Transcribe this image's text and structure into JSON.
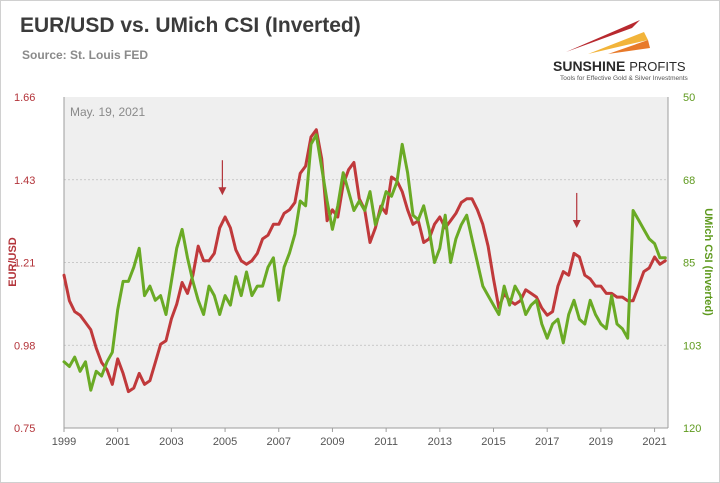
{
  "header": {
    "title": "EUR/USD vs. UMich CSI (Inverted)",
    "source": "Source: St. Louis FED"
  },
  "logo": {
    "brand_main": "SUNSHINE",
    "brand_sub": "PROFITS",
    "tagline": "Tools for Effective Gold & Silver Investments",
    "colors": [
      "#b8292f",
      "#f2b43a",
      "#e87a2a"
    ]
  },
  "chart_data": {
    "type": "line",
    "date_label": "May. 19, 2021",
    "xlabel": "",
    "ylabel_left": "EUR/USD",
    "ylabel_right": "UMich CSI (Inverted)",
    "x_ticks": [
      "1999",
      "2001",
      "2003",
      "2005",
      "2007",
      "2009",
      "2011",
      "2013",
      "2015",
      "2017",
      "2019",
      "2021"
    ],
    "y_left_ticks": [
      "1.66",
      "1.43",
      "1.21",
      "0.98",
      "0.75"
    ],
    "y_right_ticks": [
      "50",
      "68",
      "85",
      "103",
      "120"
    ],
    "ylim_left": [
      0.75,
      1.66
    ],
    "ylim_right": [
      50,
      120
    ],
    "right_axis_inverted": true,
    "xlim": [
      1999.0,
      2021.5
    ],
    "grid": true,
    "background": "#efefef",
    "annotations": [
      {
        "type": "arrow-down",
        "x": 2004.9,
        "y_left": 1.39
      },
      {
        "type": "arrow-down",
        "x": 2018.1,
        "y_left": 1.3
      }
    ],
    "series": [
      {
        "name": "EUR/USD",
        "axis": "left",
        "color": "#c0393b",
        "x": [
          1999.0,
          1999.2,
          1999.4,
          1999.6,
          1999.8,
          2000.0,
          2000.2,
          2000.4,
          2000.6,
          2000.8,
          2001.0,
          2001.2,
          2001.4,
          2001.6,
          2001.8,
          2002.0,
          2002.2,
          2002.4,
          2002.6,
          2002.8,
          2003.0,
          2003.2,
          2003.4,
          2003.6,
          2003.8,
          2004.0,
          2004.2,
          2004.4,
          2004.6,
          2004.8,
          2005.0,
          2005.2,
          2005.4,
          2005.6,
          2005.8,
          2006.0,
          2006.2,
          2006.4,
          2006.6,
          2006.8,
          2007.0,
          2007.2,
          2007.4,
          2007.6,
          2007.8,
          2008.0,
          2008.2,
          2008.4,
          2008.6,
          2008.8,
          2009.0,
          2009.2,
          2009.4,
          2009.6,
          2009.8,
          2010.0,
          2010.2,
          2010.4,
          2010.6,
          2010.8,
          2011.0,
          2011.2,
          2011.4,
          2011.6,
          2011.8,
          2012.0,
          2012.2,
          2012.4,
          2012.6,
          2012.8,
          2013.0,
          2013.2,
          2013.4,
          2013.6,
          2013.8,
          2014.0,
          2014.2,
          2014.4,
          2014.6,
          2014.8,
          2015.0,
          2015.2,
          2015.4,
          2015.6,
          2015.8,
          2016.0,
          2016.2,
          2016.4,
          2016.6,
          2016.8,
          2017.0,
          2017.2,
          2017.4,
          2017.6,
          2017.8,
          2018.0,
          2018.2,
          2018.4,
          2018.6,
          2018.8,
          2019.0,
          2019.2,
          2019.4,
          2019.6,
          2019.8,
          2020.0,
          2020.2,
          2020.4,
          2020.6,
          2020.8,
          2021.0,
          2021.2,
          2021.4
        ],
        "y": [
          1.17,
          1.1,
          1.07,
          1.06,
          1.04,
          1.02,
          0.97,
          0.93,
          0.91,
          0.87,
          0.94,
          0.9,
          0.85,
          0.86,
          0.9,
          0.87,
          0.88,
          0.93,
          0.98,
          0.99,
          1.05,
          1.09,
          1.15,
          1.12,
          1.17,
          1.25,
          1.21,
          1.21,
          1.23,
          1.3,
          1.33,
          1.3,
          1.24,
          1.21,
          1.2,
          1.21,
          1.23,
          1.27,
          1.28,
          1.31,
          1.31,
          1.34,
          1.35,
          1.37,
          1.45,
          1.47,
          1.55,
          1.57,
          1.49,
          1.32,
          1.35,
          1.33,
          1.42,
          1.46,
          1.48,
          1.38,
          1.35,
          1.26,
          1.3,
          1.36,
          1.34,
          1.44,
          1.43,
          1.4,
          1.35,
          1.31,
          1.32,
          1.26,
          1.27,
          1.31,
          1.33,
          1.3,
          1.32,
          1.34,
          1.37,
          1.38,
          1.38,
          1.35,
          1.31,
          1.25,
          1.16,
          1.08,
          1.12,
          1.1,
          1.09,
          1.1,
          1.13,
          1.12,
          1.11,
          1.08,
          1.06,
          1.07,
          1.14,
          1.18,
          1.17,
          1.23,
          1.22,
          1.17,
          1.16,
          1.14,
          1.14,
          1.12,
          1.12,
          1.11,
          1.11,
          1.1,
          1.1,
          1.14,
          1.18,
          1.19,
          1.22,
          1.2,
          1.21
        ]
      },
      {
        "name": "UMich CSI (Inverted)",
        "axis": "right",
        "color": "#6aaa25",
        "x": [
          1999.0,
          1999.2,
          1999.4,
          1999.6,
          1999.8,
          2000.0,
          2000.2,
          2000.4,
          2000.6,
          2000.8,
          2001.0,
          2001.2,
          2001.4,
          2001.6,
          2001.8,
          2002.0,
          2002.2,
          2002.4,
          2002.6,
          2002.8,
          2003.0,
          2003.2,
          2003.4,
          2003.6,
          2003.8,
          2004.0,
          2004.2,
          2004.4,
          2004.6,
          2004.8,
          2005.0,
          2005.2,
          2005.4,
          2005.6,
          2005.8,
          2006.0,
          2006.2,
          2006.4,
          2006.6,
          2006.8,
          2007.0,
          2007.2,
          2007.4,
          2007.6,
          2007.8,
          2008.0,
          2008.2,
          2008.4,
          2008.6,
          2008.8,
          2009.0,
          2009.2,
          2009.4,
          2009.6,
          2009.8,
          2010.0,
          2010.2,
          2010.4,
          2010.6,
          2010.8,
          2011.0,
          2011.2,
          2011.4,
          2011.6,
          2011.8,
          2012.0,
          2012.2,
          2012.4,
          2012.6,
          2012.8,
          2013.0,
          2013.2,
          2013.4,
          2013.6,
          2013.8,
          2014.0,
          2014.2,
          2014.4,
          2014.6,
          2014.8,
          2015.0,
          2015.2,
          2015.4,
          2015.6,
          2015.8,
          2016.0,
          2016.2,
          2016.4,
          2016.6,
          2016.8,
          2017.0,
          2017.2,
          2017.4,
          2017.6,
          2017.8,
          2018.0,
          2018.2,
          2018.4,
          2018.6,
          2018.8,
          2019.0,
          2019.2,
          2019.4,
          2019.6,
          2019.8,
          2020.0,
          2020.2,
          2020.4,
          2020.6,
          2020.8,
          2021.0,
          2021.2,
          2021.4
        ],
        "y": [
          106,
          107,
          105,
          108,
          106,
          112,
          108,
          109,
          106,
          104,
          95,
          89,
          89,
          86,
          82,
          92,
          90,
          93,
          92,
          96,
          89,
          82,
          78,
          84,
          89,
          93,
          96,
          90,
          92,
          96,
          92,
          94,
          88,
          92,
          87,
          92,
          90,
          90,
          86,
          84,
          93,
          86,
          83,
          79,
          72,
          73,
          60,
          58,
          65,
          72,
          78,
          73,
          66,
          70,
          74,
          72,
          74,
          70,
          77,
          74,
          70,
          71,
          68,
          60,
          66,
          75,
          76,
          73,
          78,
          85,
          82,
          75,
          85,
          80,
          77,
          75,
          80,
          85,
          90,
          92,
          94,
          96,
          90,
          94,
          90,
          92,
          96,
          94,
          93,
          98,
          101,
          98,
          97,
          102,
          96,
          93,
          97,
          98,
          93,
          96,
          98,
          99,
          92,
          98,
          99,
          101,
          74,
          76,
          78,
          80,
          81,
          84,
          84
        ]
      }
    ]
  }
}
